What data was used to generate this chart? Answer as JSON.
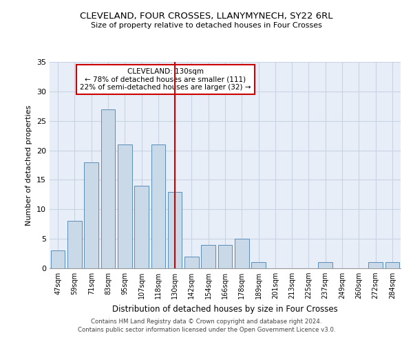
{
  "title": "CLEVELAND, FOUR CROSSES, LLANYMYNECH, SY22 6RL",
  "subtitle": "Size of property relative to detached houses in Four Crosses",
  "xlabel": "Distribution of detached houses by size in Four Crosses",
  "ylabel": "Number of detached properties",
  "categories": [
    "47sqm",
    "59sqm",
    "71sqm",
    "83sqm",
    "95sqm",
    "107sqm",
    "118sqm",
    "130sqm",
    "142sqm",
    "154sqm",
    "166sqm",
    "178sqm",
    "189sqm",
    "201sqm",
    "213sqm",
    "225sqm",
    "237sqm",
    "249sqm",
    "260sqm",
    "272sqm",
    "284sqm"
  ],
  "values": [
    3,
    8,
    18,
    27,
    21,
    14,
    21,
    13,
    2,
    4,
    4,
    5,
    1,
    0,
    0,
    0,
    1,
    0,
    0,
    1,
    1
  ],
  "bar_color": "#c9d9e8",
  "bar_edge_color": "#5b8db8",
  "highlight_index": 7,
  "highlight_line_color": "#cc0000",
  "annotation_text": "CLEVELAND: 130sqm\n← 78% of detached houses are smaller (111)\n22% of semi-detached houses are larger (32) →",
  "annotation_box_color": "#cc0000",
  "ylim": [
    0,
    35
  ],
  "yticks": [
    0,
    5,
    10,
    15,
    20,
    25,
    30,
    35
  ],
  "grid_color": "#c8d4e4",
  "background_color": "#e8eef8",
  "footer_line1": "Contains HM Land Registry data © Crown copyright and database right 2024.",
  "footer_line2": "Contains public sector information licensed under the Open Government Licence v3.0."
}
